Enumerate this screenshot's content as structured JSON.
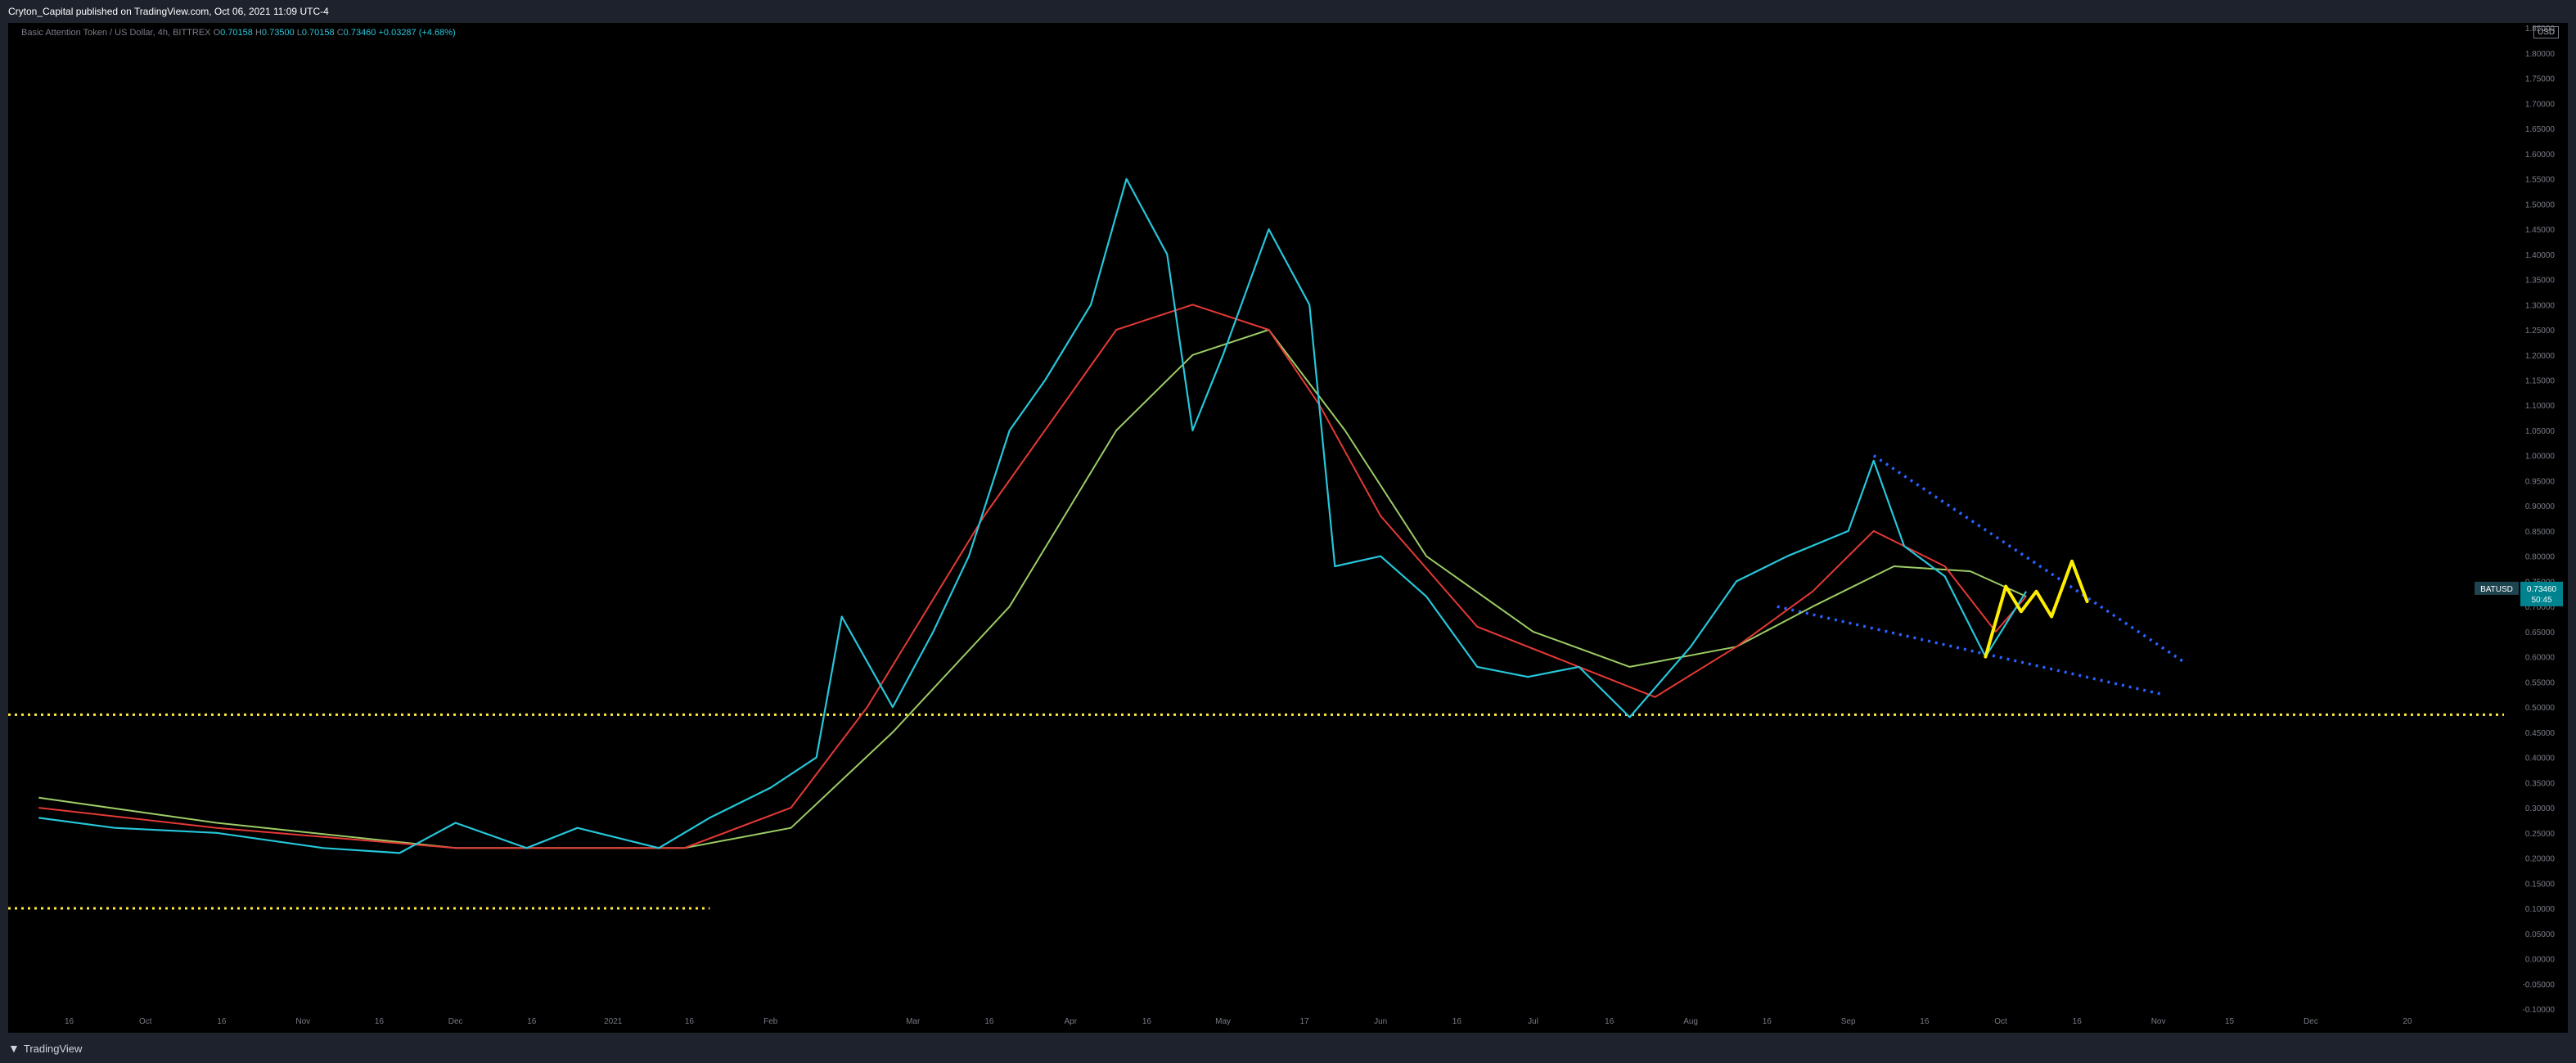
{
  "header": {
    "text": "Cryton_Capital published on TradingView.com, Oct 06, 2021 11:09 UTC-4"
  },
  "footer": {
    "logo_label": "TradingView"
  },
  "legend": {
    "symbol": "Basic Attention Token / US Dollar, 4h, BITTREX",
    "open": "0.70158",
    "high": "0.73500",
    "low": "0.70158",
    "close": "0.73460",
    "change": "+0.03287 (+4.68%)"
  },
  "price_scale": {
    "currency": "USD"
  },
  "last_price": {
    "symbol": "BATUSD",
    "price": "0.73460",
    "countdown": "50:45"
  },
  "colors": {
    "candles": "#26c6da",
    "ma_fast": "#e53935",
    "ma_slow": "#9ccc65",
    "horizontal_level": "#ffeb3b",
    "wedge_lines": "#2962ff",
    "projection": "#ffee00",
    "price_label_bg": "#00838f"
  },
  "chart_data": {
    "type": "line",
    "series": [
      {
        "values": [
          [
            "Sep 10 2020",
            0.28
          ],
          [
            "Sep 25 2020",
            0.26
          ],
          [
            "Oct 15 2020",
            0.25
          ],
          [
            "Nov 05 2020",
            0.22
          ],
          [
            "Nov 20 2020",
            0.21
          ],
          [
            "Dec 01 2020",
            0.27
          ],
          [
            "Dec 15 2020",
            0.22
          ],
          [
            "Dec 25 2020",
            0.26
          ],
          [
            "Jan 10 2021",
            0.22
          ],
          [
            "Jan 20 2021",
            0.28
          ],
          [
            "Feb 01 2021",
            0.34
          ],
          [
            "Feb 10 2021",
            0.4
          ],
          [
            "Feb 15 2021",
            0.68
          ],
          [
            "Feb 25 2021",
            0.5
          ],
          [
            "Mar 05 2021",
            0.65
          ],
          [
            "Mar 12 2021",
            0.8
          ],
          [
            "Mar 20 2021",
            1.05
          ],
          [
            "Mar 27 2021",
            1.15
          ],
          [
            "Apr 05 2021",
            1.3
          ],
          [
            "Apr 12 2021",
            1.55
          ],
          [
            "Apr 20 2021",
            1.4
          ],
          [
            "Apr 25 2021",
            1.05
          ],
          [
            "May 01 2021",
            1.2
          ],
          [
            "May 10 2021",
            1.45
          ],
          [
            "May 18 2021",
            1.3
          ],
          [
            "May 23 2021",
            0.78
          ],
          [
            "Jun 01 2021",
            0.8
          ],
          [
            "Jun 10 2021",
            0.72
          ],
          [
            "Jun 20 2021",
            0.58
          ],
          [
            "Jun 30 2021",
            0.56
          ],
          [
            "Jul 10 2021",
            0.58
          ],
          [
            "Jul 20 2021",
            0.48
          ],
          [
            "Aug 01 2021",
            0.62
          ],
          [
            "Aug 10 2021",
            0.75
          ],
          [
            "Aug 20 2021",
            0.8
          ],
          [
            "Sep 01 2021",
            0.85
          ],
          [
            "Sep 06 2021",
            0.99
          ],
          [
            "Sep 12 2021",
            0.82
          ],
          [
            "Sep 20 2021",
            0.76
          ],
          [
            "Sep 28 2021",
            0.6
          ],
          [
            "Oct 06 2021",
            0.73
          ]
        ]
      },
      {
        "values": [
          [
            "Sep 10 2020",
            0.3
          ],
          [
            "Oct 15 2020",
            0.26
          ],
          [
            "Dec 01 2020",
            0.22
          ],
          [
            "Jan 15 2021",
            0.22
          ],
          [
            "Feb 05 2021",
            0.3
          ],
          [
            "Feb 20 2021",
            0.5
          ],
          [
            "Mar 15 2021",
            0.88
          ],
          [
            "Apr 10 2021",
            1.25
          ],
          [
            "Apr 25 2021",
            1.3
          ],
          [
            "May 10 2021",
            1.25
          ],
          [
            "May 20 2021",
            1.1
          ],
          [
            "Jun 01 2021",
            0.88
          ],
          [
            "Jun 20 2021",
            0.66
          ],
          [
            "Jul 10 2021",
            0.58
          ],
          [
            "Jul 25 2021",
            0.52
          ],
          [
            "Aug 10 2021",
            0.62
          ],
          [
            "Aug 25 2021",
            0.73
          ],
          [
            "Sep 06 2021",
            0.85
          ],
          [
            "Sep 20 2021",
            0.78
          ],
          [
            "Sep 30 2021",
            0.65
          ],
          [
            "Oct 06 2021",
            0.72
          ]
        ]
      },
      {
        "values": [
          [
            "Sep 10 2020",
            0.32
          ],
          [
            "Oct 15 2020",
            0.27
          ],
          [
            "Dec 01 2020",
            0.22
          ],
          [
            "Jan 15 2021",
            0.22
          ],
          [
            "Feb 05 2021",
            0.26
          ],
          [
            "Feb 25 2021",
            0.45
          ],
          [
            "Mar 20 2021",
            0.7
          ],
          [
            "Apr 10 2021",
            1.05
          ],
          [
            "Apr 25 2021",
            1.2
          ],
          [
            "May 10 2021",
            1.25
          ],
          [
            "May 25 2021",
            1.05
          ],
          [
            "Jun 10 2021",
            0.8
          ],
          [
            "Jul 01 2021",
            0.65
          ],
          [
            "Jul 20 2021",
            0.58
          ],
          [
            "Aug 10 2021",
            0.62
          ],
          [
            "Aug 25 2021",
            0.7
          ],
          [
            "Sep 10 2021",
            0.78
          ],
          [
            "Sep 25 2021",
            0.77
          ],
          [
            "Oct 06 2021",
            0.72
          ]
        ]
      }
    ],
    "x_range": [
      "Sep 04 2020",
      "Jan 08 2022"
    ],
    "y_range": [
      -0.1,
      1.86
    ],
    "y_ticks": [
      "1.85000",
      "1.80000",
      "1.75000",
      "1.70000",
      "1.65000",
      "1.60000",
      "1.55000",
      "1.50000",
      "1.45000",
      "1.40000",
      "1.35000",
      "1.30000",
      "1.25000",
      "1.20000",
      "1.15000",
      "1.10000",
      "1.05000",
      "1.00000",
      "0.95000",
      "0.90000",
      "0.85000",
      "0.80000",
      "0.75000",
      "0.70000",
      "0.65000",
      "0.60000",
      "0.55000",
      "0.50000",
      "0.45000",
      "0.40000",
      "0.35000",
      "0.30000",
      "0.25000",
      "0.20000",
      "0.15000",
      "0.10000",
      "0.05000",
      "0.00000",
      "-0.05000",
      "-0.10000"
    ],
    "x_ticks": [
      {
        "label": "16",
        "date": "Sep 16 2020"
      },
      {
        "label": "Oct",
        "date": "Oct 01 2020"
      },
      {
        "label": "16",
        "date": "Oct 16 2020"
      },
      {
        "label": "Nov",
        "date": "Nov 01 2020"
      },
      {
        "label": "16",
        "date": "Nov 16 2020"
      },
      {
        "label": "Dec",
        "date": "Dec 01 2020"
      },
      {
        "label": "16",
        "date": "Dec 16 2020"
      },
      {
        "label": "2021",
        "date": "Jan 01 2021"
      },
      {
        "label": "16",
        "date": "Jan 16 2021"
      },
      {
        "label": "Feb",
        "date": "Feb 01 2021"
      },
      {
        "label": "Mar",
        "date": "Mar 01 2021"
      },
      {
        "label": "16",
        "date": "Mar 16 2021"
      },
      {
        "label": "Apr",
        "date": "Apr 01 2021"
      },
      {
        "label": "16",
        "date": "Apr 16 2021"
      },
      {
        "label": "May",
        "date": "May 01 2021"
      },
      {
        "label": "17",
        "date": "May 17 2021"
      },
      {
        "label": "Jun",
        "date": "Jun 01 2021"
      },
      {
        "label": "16",
        "date": "Jun 16 2021"
      },
      {
        "label": "Jul",
        "date": "Jul 01 2021"
      },
      {
        "label": "16",
        "date": "Jul 16 2021"
      },
      {
        "label": "Aug",
        "date": "Aug 01 2021"
      },
      {
        "label": "16",
        "date": "Aug 16 2021"
      },
      {
        "label": "Sep",
        "date": "Sep 01 2021"
      },
      {
        "label": "16",
        "date": "Sep 16 2021"
      },
      {
        "label": "Oct",
        "date": "Oct 01 2021"
      },
      {
        "label": "16",
        "date": "Oct 16 2021"
      },
      {
        "label": "Nov",
        "date": "Nov 01 2021"
      },
      {
        "label": "15",
        "date": "Nov 15 2021"
      },
      {
        "label": "Dec",
        "date": "Dec 01 2021"
      },
      {
        "label": "20",
        "date": "Dec 20 2021"
      }
    ],
    "horizontal_levels": [
      {
        "price": 0.485,
        "from": "Sep 04 2020",
        "to": "Jan 08 2022"
      },
      {
        "price": 0.1,
        "from": "Sep 04 2020",
        "to": "Jan 20 2021"
      }
    ],
    "trendlines": [
      {
        "from": [
          "Sep 06 2021",
          1.0
        ],
        "to": [
          "Nov 06 2021",
          0.59
        ]
      },
      {
        "from": [
          "Aug 18 2021",
          0.7
        ],
        "to": [
          "Nov 02 2021",
          0.525
        ]
      }
    ],
    "projection": [
      [
        "Sep 28 2021",
        0.6
      ],
      [
        "Oct 02 2021",
        0.74
      ],
      [
        "Oct 05 2021",
        0.69
      ],
      [
        "Oct 08 2021",
        0.73
      ],
      [
        "Oct 11 2021",
        0.68
      ],
      [
        "Oct 15 2021",
        0.79
      ],
      [
        "Oct 18 2021",
        0.71
      ]
    ],
    "grid": false,
    "legend_position": "top-left"
  }
}
